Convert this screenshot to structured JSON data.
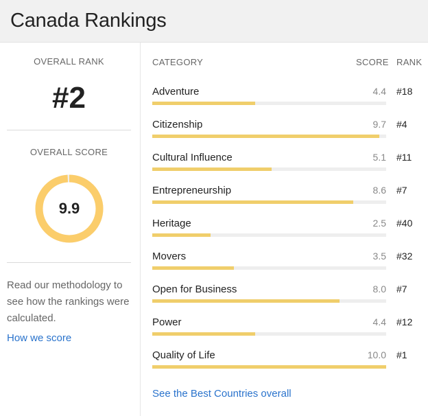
{
  "header": {
    "title": "Canada Rankings"
  },
  "overall": {
    "rank_label": "OVERALL RANK",
    "rank_value": "#2",
    "score_label": "OVERALL SCORE",
    "score_value": "9.9",
    "score_fraction": 0.99,
    "ring_color": "#fbcd6b",
    "methodology_text": "Read our methodology to see how the rankings were calculated.",
    "how_link": "How we score"
  },
  "table": {
    "col_category": "CATEGORY",
    "col_score": "SCORE",
    "col_rank": "RANK",
    "bar_color": "#f0ce6b",
    "rows": [
      {
        "category": "Adventure",
        "score": "4.4",
        "rank": "#18"
      },
      {
        "category": "Citizenship",
        "score": "9.7",
        "rank": "#4"
      },
      {
        "category": "Cultural Influence",
        "score": "5.1",
        "rank": "#11"
      },
      {
        "category": "Entrepreneurship",
        "score": "8.6",
        "rank": "#7"
      },
      {
        "category": "Heritage",
        "score": "2.5",
        "rank": "#40"
      },
      {
        "category": "Movers",
        "score": "3.5",
        "rank": "#32"
      },
      {
        "category": "Open for Business",
        "score": "8.0",
        "rank": "#7"
      },
      {
        "category": "Power",
        "score": "4.4",
        "rank": "#12"
      },
      {
        "category": "Quality of Life",
        "score": "10.0",
        "rank": "#1"
      }
    ]
  },
  "footer_link": "See the Best Countries overall"
}
